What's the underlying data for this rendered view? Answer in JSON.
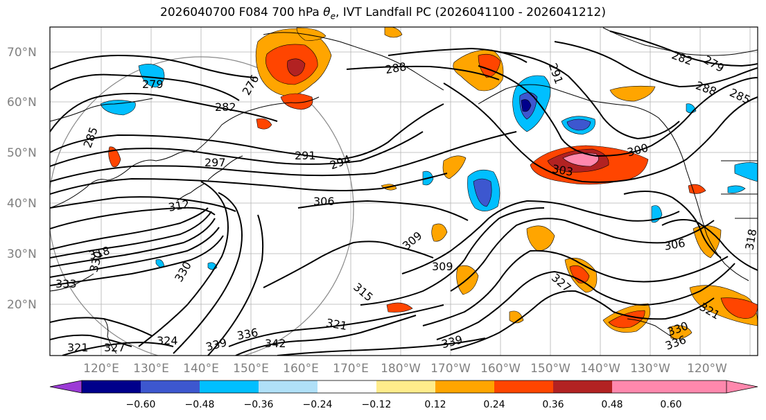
{
  "title": {
    "prefix": "2026040700 F084 700 hPa ",
    "symbol": "θ",
    "subscript": "e",
    "suffix": ", IVT Landfall PC (2026041100 - 2026041212)"
  },
  "chart_data": {
    "type": "map-contour",
    "y_ticks": [
      "70°N",
      "60°N",
      "50°N",
      "40°N",
      "30°N",
      "20°N"
    ],
    "x_ticks": [
      "120°E",
      "130°E",
      "140°E",
      "150°E",
      "160°E",
      "170°E",
      "180°W",
      "170°W",
      "160°W",
      "150°W",
      "140°W",
      "130°W",
      "120°W"
    ],
    "contour_labels": [
      "279",
      "276",
      "282",
      "285",
      "291",
      "294",
      "297",
      "288",
      "291",
      "282",
      "279",
      "288",
      "285",
      "303",
      "300",
      "306",
      "312",
      "309",
      "309",
      "306",
      "315",
      "321",
      "327",
      "321",
      "318",
      "318",
      "330",
      "333",
      "330",
      "324",
      "321",
      "327",
      "339",
      "336",
      "342",
      "339",
      "330",
      "336"
    ],
    "colorbar": {
      "colors": [
        "#9c3bd6",
        "#00008b",
        "#3d57cf",
        "#00bfff",
        "#b0e0f8",
        "#ffffff",
        "#ffec8b",
        "#ffa500",
        "#ff4500",
        "#b22222",
        "#ff88ad"
      ],
      "tick_labels": [
        "−0.60",
        "−0.48",
        "−0.36",
        "−0.24",
        "−0.12",
        "0.12",
        "0.24",
        "0.36",
        "0.48",
        "0.60"
      ]
    }
  }
}
